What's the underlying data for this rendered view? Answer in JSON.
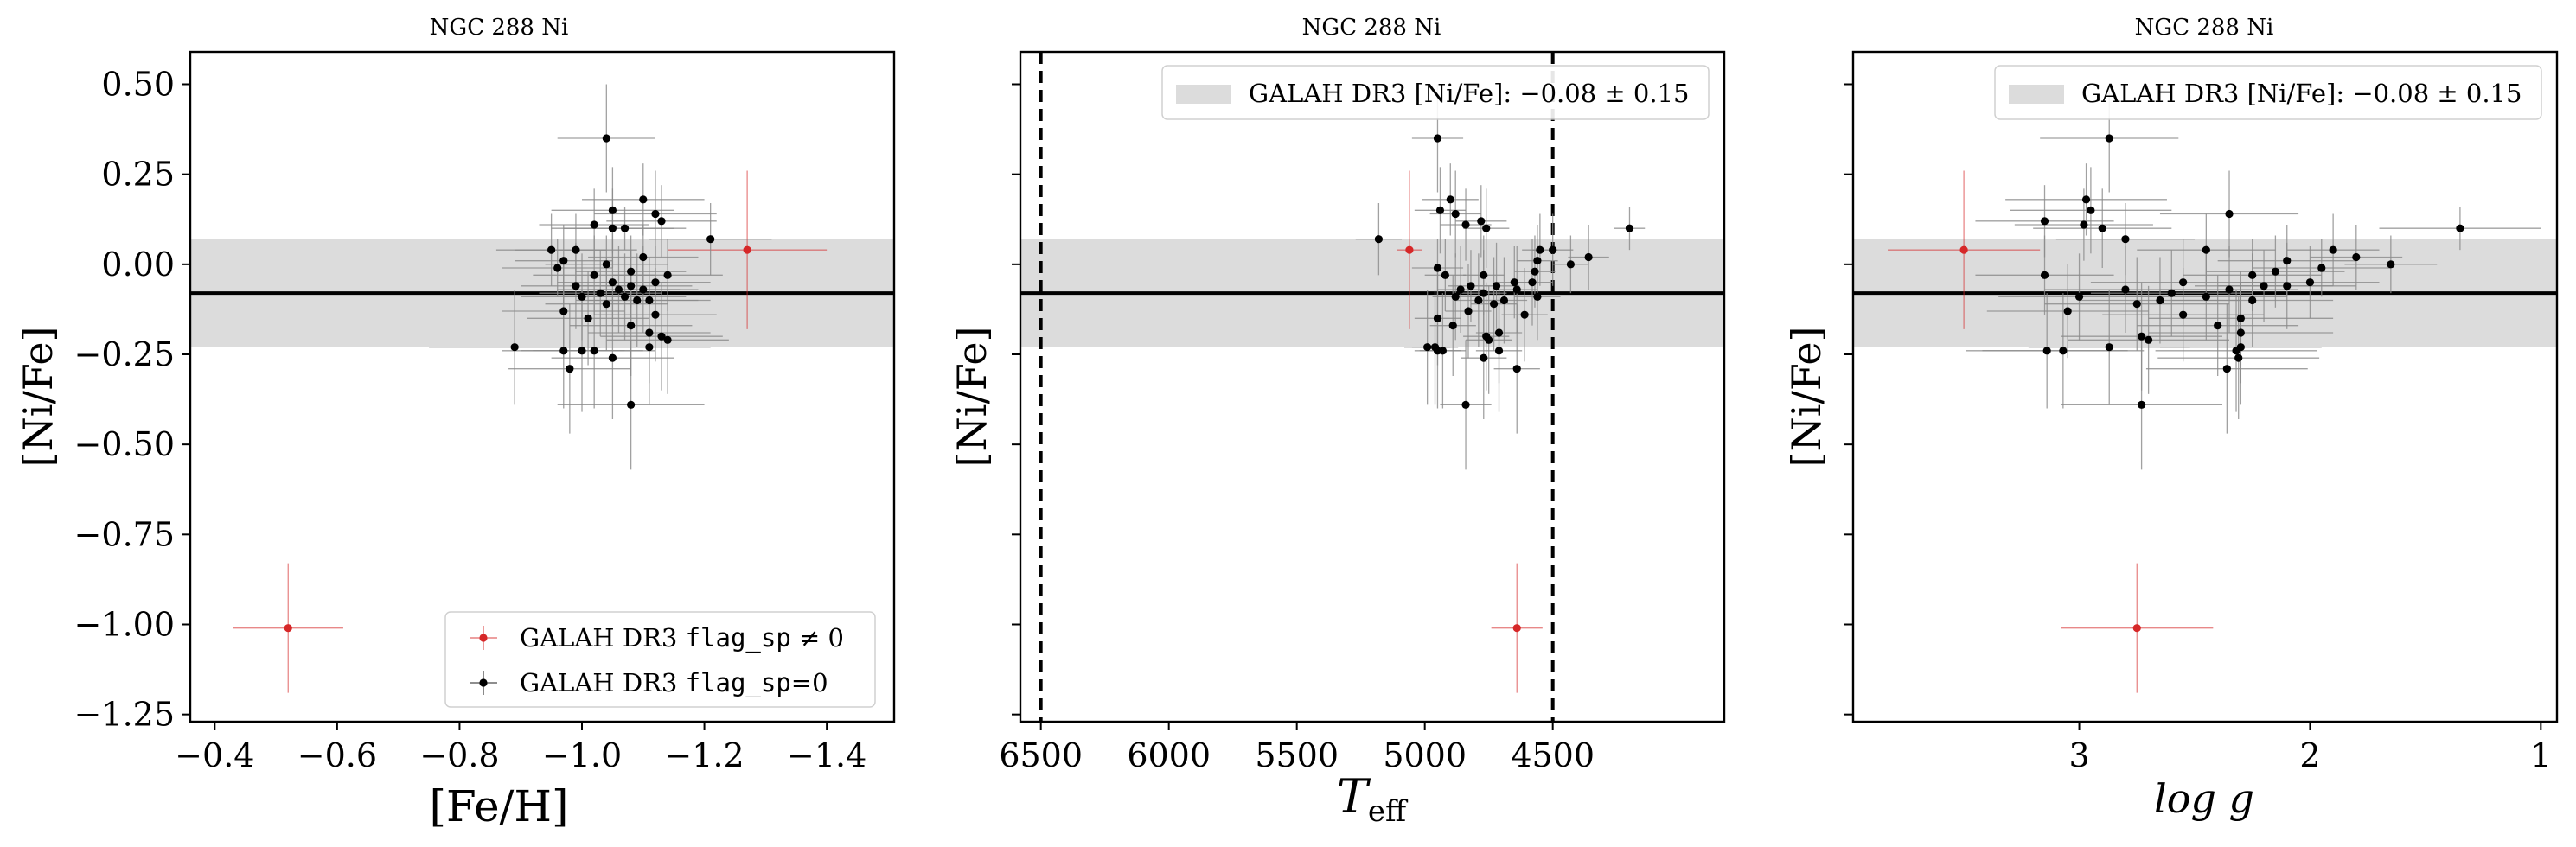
{
  "figure": {
    "panel_title": "NGC 288 Ni"
  },
  "colors": {
    "flagged": "#d62728",
    "normal": "#000000",
    "band": "#dcdcdc",
    "errorbar": "#8a8a8a"
  },
  "chart_data": [
    {
      "type": "scatter",
      "title": "NGC 288 Ni",
      "xlabel": "[Fe/H]",
      "ylabel": "[Ni/Fe]",
      "xlim": [
        -0.36,
        -1.51
      ],
      "ylim": [
        -1.27,
        0.59
      ],
      "xticks": [
        -0.4,
        -0.6,
        -0.8,
        -1.0,
        -1.2,
        -1.4
      ],
      "xtick_labels": [
        "−0.4",
        "−0.6",
        "−0.8",
        "−1.0",
        "−1.2",
        "−1.4"
      ],
      "yticks": [
        0.5,
        0.25,
        0.0,
        -0.25,
        -0.5,
        -0.75,
        -1.0,
        -1.25
      ],
      "ytick_labels": [
        "0.50",
        "0.25",
        "0.00",
        "−0.25",
        "−0.50",
        "−0.75",
        "−1.00",
        "−1.25"
      ],
      "show_ytick_labels": true,
      "axis_var": "feh",
      "legend": {
        "position": "lower-right",
        "entries": [
          {
            "prefix": "GALAH DR3 ",
            "code": "flag_sp",
            "suffix": " ≠ 0",
            "kind": "flagged"
          },
          {
            "prefix": "GALAH DR3 ",
            "code": "flag_sp",
            "suffix": "=0",
            "kind": "normal"
          }
        ]
      },
      "band": {
        "center": -0.08,
        "halfwidth": 0.15
      },
      "vlines": []
    },
    {
      "type": "scatter",
      "title": "NGC 288 Ni",
      "xlabel": "T",
      "xlabel_sub": "eff",
      "ylabel": "[Ni/Fe]",
      "xlim": [
        6580,
        3830
      ],
      "ylim": [
        -1.27,
        0.59
      ],
      "xticks": [
        6500,
        6000,
        5500,
        5000,
        4500
      ],
      "xtick_labels": [
        "6500",
        "6000",
        "5500",
        "5000",
        "4500"
      ],
      "yticks": [
        0.5,
        0.25,
        0.0,
        -0.25,
        -0.5,
        -0.75,
        -1.0,
        -1.25
      ],
      "show_ytick_labels": false,
      "axis_var": "teff",
      "legend": {
        "position": "upper-right",
        "entries": [
          {
            "prefix": "GALAH DR3 [Ni/Fe]: ",
            "code": "",
            "suffix": "−0.08 ± 0.15",
            "kind": "band"
          }
        ]
      },
      "band": {
        "center": -0.08,
        "halfwidth": 0.15
      },
      "vlines": [
        6500,
        4500
      ]
    },
    {
      "type": "scatter",
      "title": "NGC 288 Ni",
      "xlabel": "log g",
      "ylabel": "[Ni/Fe]",
      "xlim": [
        3.98,
        0.93
      ],
      "ylim": [
        -1.27,
        0.59
      ],
      "xticks": [
        3,
        2,
        1
      ],
      "xtick_labels": [
        "3",
        "2",
        "1"
      ],
      "yticks": [
        0.5,
        0.25,
        0.0,
        -0.25,
        -0.5,
        -0.75,
        -1.0,
        -1.25
      ],
      "show_ytick_labels": false,
      "axis_var": "logg",
      "legend": {
        "position": "upper-right",
        "entries": [
          {
            "prefix": "GALAH DR3 [Ni/Fe]: ",
            "code": "",
            "suffix": "−0.08 ± 0.15",
            "kind": "band"
          }
        ]
      },
      "band": {
        "center": -0.08,
        "halfwidth": 0.15
      },
      "vlines": []
    }
  ],
  "stars": [
    {
      "feh": -0.52,
      "feh_err": 0.09,
      "teff": 4640,
      "teff_err": 100,
      "logg": 2.75,
      "logg_err": 0.33,
      "y": -1.01,
      "y_err": 0.18,
      "flag": 1
    },
    {
      "feh": -1.27,
      "feh_err": 0.13,
      "teff": 5060,
      "teff_err": 50,
      "logg": 3.5,
      "logg_err": 0.33,
      "y": 0.04,
      "y_err": 0.22,
      "flag": 1
    },
    {
      "feh": -1.04,
      "feh_err": 0.08,
      "teff": 4950,
      "teff_err": 100,
      "logg": 2.87,
      "logg_err": 0.3,
      "y": 0.35,
      "y_err": 0.15,
      "flag": 0
    },
    {
      "feh": -1.1,
      "feh_err": 0.1,
      "teff": 4900,
      "teff_err": 110,
      "logg": 2.97,
      "logg_err": 0.35,
      "y": 0.18,
      "y_err": 0.1,
      "flag": 0
    },
    {
      "feh": -1.05,
      "feh_err": 0.1,
      "teff": 4940,
      "teff_err": 100,
      "logg": 2.95,
      "logg_err": 0.35,
      "y": 0.15,
      "y_err": 0.12,
      "flag": 0
    },
    {
      "feh": -1.12,
      "feh_err": 0.1,
      "teff": 4880,
      "teff_err": 100,
      "logg": 2.35,
      "logg_err": 0.3,
      "y": 0.14,
      "y_err": 0.12,
      "flag": 0
    },
    {
      "feh": -1.13,
      "feh_err": 0.09,
      "teff": 4780,
      "teff_err": 100,
      "logg": 3.15,
      "logg_err": 0.3,
      "y": 0.12,
      "y_err": 0.1,
      "flag": 0
    },
    {
      "feh": -1.02,
      "feh_err": 0.09,
      "teff": 4840,
      "teff_err": 100,
      "logg": 2.98,
      "logg_err": 0.3,
      "y": 0.11,
      "y_err": 0.1,
      "flag": 0
    },
    {
      "feh": -1.05,
      "feh_err": 0.1,
      "teff": 4760,
      "teff_err": 90,
      "logg": 2.9,
      "logg_err": 0.3,
      "y": 0.1,
      "y_err": 0.11,
      "flag": 0
    },
    {
      "feh": -1.21,
      "feh_err": 0.1,
      "teff": 5180,
      "teff_err": 90,
      "logg": 2.8,
      "logg_err": 0.3,
      "y": 0.07,
      "y_err": 0.1,
      "flag": 0
    },
    {
      "feh": -1.07,
      "feh_err": 0.1,
      "teff": 4200,
      "teff_err": 60,
      "logg": 1.35,
      "logg_err": 0.35,
      "y": 0.1,
      "y_err": 0.06,
      "flag": 0
    },
    {
      "feh": -0.99,
      "feh_err": 0.1,
      "teff": 4550,
      "teff_err": 70,
      "logg": 2.45,
      "logg_err": 0.3,
      "y": 0.04,
      "y_err": 0.1,
      "flag": 0
    },
    {
      "feh": -0.95,
      "feh_err": 0.09,
      "teff": 4500,
      "teff_err": 80,
      "logg": 1.9,
      "logg_err": 0.2,
      "y": 0.04,
      "y_err": 0.1,
      "flag": 0
    },
    {
      "feh": -1.1,
      "feh_err": 0.09,
      "teff": 4360,
      "teff_err": 80,
      "logg": 1.8,
      "logg_err": 0.2,
      "y": 0.02,
      "y_err": 0.09,
      "flag": 0
    },
    {
      "feh": -0.97,
      "feh_err": 0.08,
      "teff": 4560,
      "teff_err": 80,
      "logg": 2.1,
      "logg_err": 0.3,
      "y": 0.01,
      "y_err": 0.1,
      "flag": 0
    },
    {
      "feh": -1.04,
      "feh_err": 0.1,
      "teff": 4430,
      "teff_err": 70,
      "logg": 1.65,
      "logg_err": 0.2,
      "y": 0.0,
      "y_err": 0.08,
      "flag": 0
    },
    {
      "feh": -0.96,
      "feh_err": 0.09,
      "teff": 4950,
      "teff_err": 100,
      "logg": 1.95,
      "logg_err": 0.3,
      "y": -0.01,
      "y_err": 0.08,
      "flag": 0
    },
    {
      "feh": -1.08,
      "feh_err": 0.09,
      "teff": 4570,
      "teff_err": 80,
      "logg": 2.15,
      "logg_err": 0.3,
      "y": -0.02,
      "y_err": 0.1,
      "flag": 0
    },
    {
      "feh": -1.14,
      "feh_err": 0.09,
      "teff": 4920,
      "teff_err": 80,
      "logg": 2.25,
      "logg_err": 0.3,
      "y": -0.03,
      "y_err": 0.1,
      "flag": 0
    },
    {
      "feh": -1.02,
      "feh_err": 0.1,
      "teff": 4770,
      "teff_err": 80,
      "logg": 3.15,
      "logg_err": 0.3,
      "y": -0.03,
      "y_err": 0.11,
      "flag": 0
    },
    {
      "feh": -1.12,
      "feh_err": 0.09,
      "teff": 4650,
      "teff_err": 80,
      "logg": 2.0,
      "logg_err": 0.3,
      "y": -0.05,
      "y_err": 0.1,
      "flag": 0
    },
    {
      "feh": -1.05,
      "feh_err": 0.09,
      "teff": 4580,
      "teff_err": 80,
      "logg": 2.55,
      "logg_err": 0.4,
      "y": -0.05,
      "y_err": 0.12,
      "flag": 0
    },
    {
      "feh": -1.08,
      "feh_err": 0.1,
      "teff": 4820,
      "teff_err": 90,
      "logg": 2.2,
      "logg_err": 0.3,
      "y": -0.06,
      "y_err": 0.1,
      "flag": 0
    },
    {
      "feh": -0.99,
      "feh_err": 0.09,
      "teff": 4720,
      "teff_err": 90,
      "logg": 2.1,
      "logg_err": 0.3,
      "y": -0.06,
      "y_err": 0.12,
      "flag": 0
    },
    {
      "feh": -1.1,
      "feh_err": 0.09,
      "teff": 4640,
      "teff_err": 80,
      "logg": 2.35,
      "logg_err": 0.3,
      "y": -0.07,
      "y_err": 0.12,
      "flag": 0
    },
    {
      "feh": -1.06,
      "feh_err": 0.1,
      "teff": 4860,
      "teff_err": 90,
      "logg": 2.8,
      "logg_err": 0.35,
      "y": -0.07,
      "y_err": 0.12,
      "flag": 0
    },
    {
      "feh": -1.03,
      "feh_err": 0.1,
      "teff": 4770,
      "teff_err": 90,
      "logg": 2.6,
      "logg_err": 0.35,
      "y": -0.08,
      "y_err": 0.12,
      "flag": 0
    },
    {
      "feh": -1.0,
      "feh_err": 0.1,
      "teff": 4560,
      "teff_err": 90,
      "logg": 2.45,
      "logg_err": 0.35,
      "y": -0.09,
      "y_err": 0.12,
      "flag": 0
    },
    {
      "feh": -1.07,
      "feh_err": 0.1,
      "teff": 4880,
      "teff_err": 90,
      "logg": 3.0,
      "logg_err": 0.35,
      "y": -0.09,
      "y_err": 0.12,
      "flag": 0
    },
    {
      "feh": -1.11,
      "feh_err": 0.1,
      "teff": 4690,
      "teff_err": 90,
      "logg": 2.65,
      "logg_err": 0.35,
      "y": -0.1,
      "y_err": 0.12,
      "flag": 0
    },
    {
      "feh": -1.09,
      "feh_err": 0.1,
      "teff": 4790,
      "teff_err": 90,
      "logg": 2.25,
      "logg_err": 0.35,
      "y": -0.1,
      "y_err": 0.13,
      "flag": 0
    },
    {
      "feh": -1.04,
      "feh_err": 0.1,
      "teff": 4730,
      "teff_err": 90,
      "logg": 2.75,
      "logg_err": 0.4,
      "y": -0.11,
      "y_err": 0.13,
      "flag": 0
    },
    {
      "feh": -0.97,
      "feh_err": 0.1,
      "teff": 4830,
      "teff_err": 90,
      "logg": 3.05,
      "logg_err": 0.35,
      "y": -0.13,
      "y_err": 0.13,
      "flag": 0
    },
    {
      "feh": -1.12,
      "feh_err": 0.1,
      "teff": 4610,
      "teff_err": 90,
      "logg": 2.55,
      "logg_err": 0.35,
      "y": -0.14,
      "y_err": 0.13,
      "flag": 0
    },
    {
      "feh": -1.01,
      "feh_err": 0.1,
      "teff": 4950,
      "teff_err": 90,
      "logg": 2.3,
      "logg_err": 0.4,
      "y": -0.15,
      "y_err": 0.13,
      "flag": 0
    },
    {
      "feh": -1.08,
      "feh_err": 0.1,
      "teff": 4890,
      "teff_err": 90,
      "logg": 2.4,
      "logg_err": 0.35,
      "y": -0.17,
      "y_err": 0.14,
      "flag": 0
    },
    {
      "feh": -1.11,
      "feh_err": 0.1,
      "teff": 4710,
      "teff_err": 90,
      "logg": 2.3,
      "logg_err": 0.4,
      "y": -0.19,
      "y_err": 0.14,
      "flag": 0
    },
    {
      "feh": -1.13,
      "feh_err": 0.1,
      "teff": 4760,
      "teff_err": 90,
      "logg": 2.73,
      "logg_err": 0.35,
      "y": -0.2,
      "y_err": 0.15,
      "flag": 0
    },
    {
      "feh": -1.14,
      "feh_err": 0.1,
      "teff": 4750,
      "teff_err": 90,
      "logg": 2.7,
      "logg_err": 0.35,
      "y": -0.21,
      "y_err": 0.15,
      "flag": 0
    },
    {
      "feh": -0.89,
      "feh_err": 0.14,
      "teff": 4960,
      "teff_err": 90,
      "logg": 2.87,
      "logg_err": 0.35,
      "y": -0.23,
      "y_err": 0.16,
      "flag": 0
    },
    {
      "feh": -1.11,
      "feh_err": 0.1,
      "teff": 4990,
      "teff_err": 90,
      "logg": 2.3,
      "logg_err": 0.35,
      "y": -0.23,
      "y_err": 0.16,
      "flag": 0
    },
    {
      "feh": -1.02,
      "feh_err": 0.1,
      "teff": 4930,
      "teff_err": 90,
      "logg": 3.07,
      "logg_err": 0.35,
      "y": -0.24,
      "y_err": 0.16,
      "flag": 0
    },
    {
      "feh": -0.97,
      "feh_err": 0.1,
      "teff": 4950,
      "teff_err": 90,
      "logg": 3.14,
      "logg_err": 0.35,
      "y": -0.24,
      "y_err": 0.16,
      "flag": 0
    },
    {
      "feh": -1.0,
      "feh_err": 0.1,
      "teff": 4710,
      "teff_err": 90,
      "logg": 2.32,
      "logg_err": 0.35,
      "y": -0.24,
      "y_err": 0.17,
      "flag": 0
    },
    {
      "feh": -1.05,
      "feh_err": 0.1,
      "teff": 4770,
      "teff_err": 90,
      "logg": 2.31,
      "logg_err": 0.35,
      "y": -0.26,
      "y_err": 0.17,
      "flag": 0
    },
    {
      "feh": -0.98,
      "feh_err": 0.1,
      "teff": 4640,
      "teff_err": 90,
      "logg": 2.36,
      "logg_err": 0.35,
      "y": -0.29,
      "y_err": 0.18,
      "flag": 0
    },
    {
      "feh": -1.08,
      "feh_err": 0.12,
      "teff": 4840,
      "teff_err": 100,
      "logg": 2.73,
      "logg_err": 0.35,
      "y": -0.39,
      "y_err": 0.18,
      "flag": 0
    }
  ]
}
